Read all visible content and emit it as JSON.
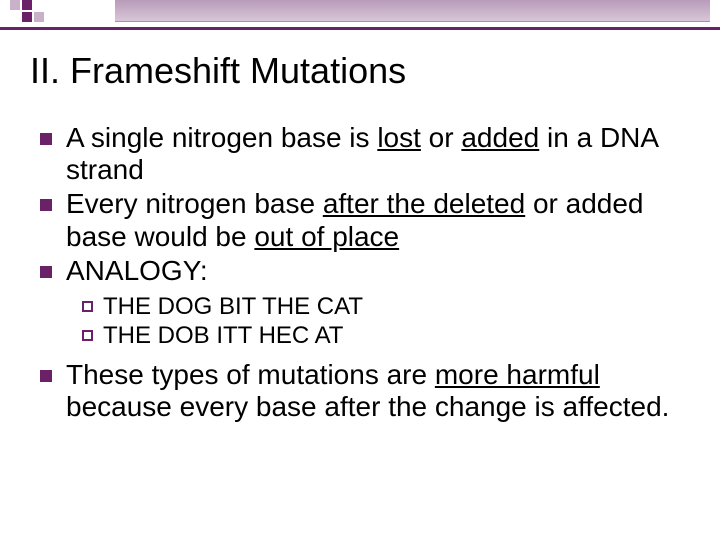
{
  "colors": {
    "accent": "#6b2168",
    "header_gradient_top": "#b89bb9",
    "header_gradient_bottom": "#d8c7d8",
    "logo_light": "#c9b2c9",
    "background": "#ffffff",
    "text": "#000000"
  },
  "title": "II. Frameshift Mutations",
  "bullets": [
    {
      "segments": [
        {
          "t": "A single nitrogen base is "
        },
        {
          "t": "lost",
          "u": true
        },
        {
          "t": " or "
        },
        {
          "t": "added",
          "u": true
        },
        {
          "t": " in a DNA strand"
        }
      ]
    },
    {
      "segments": [
        {
          "t": "Every nitrogen base "
        },
        {
          "t": "after the deleted",
          "u": true
        },
        {
          "t": " or added base would be "
        },
        {
          "t": "out of place",
          "u": true
        }
      ]
    },
    {
      "segments": [
        {
          "t": "ANALOGY:"
        }
      ],
      "sub": [
        {
          "segments": [
            {
              "t": "THE DOG BIT THE CAT"
            }
          ]
        },
        {
          "segments": [
            {
              "t": "THE DOB ITT HEC AT"
            }
          ]
        }
      ]
    },
    {
      "segments": [
        {
          "t": "These types of mutations are "
        },
        {
          "t": "more harmful",
          "u": true
        },
        {
          "t": " because every base after the change is affected."
        }
      ]
    }
  ]
}
